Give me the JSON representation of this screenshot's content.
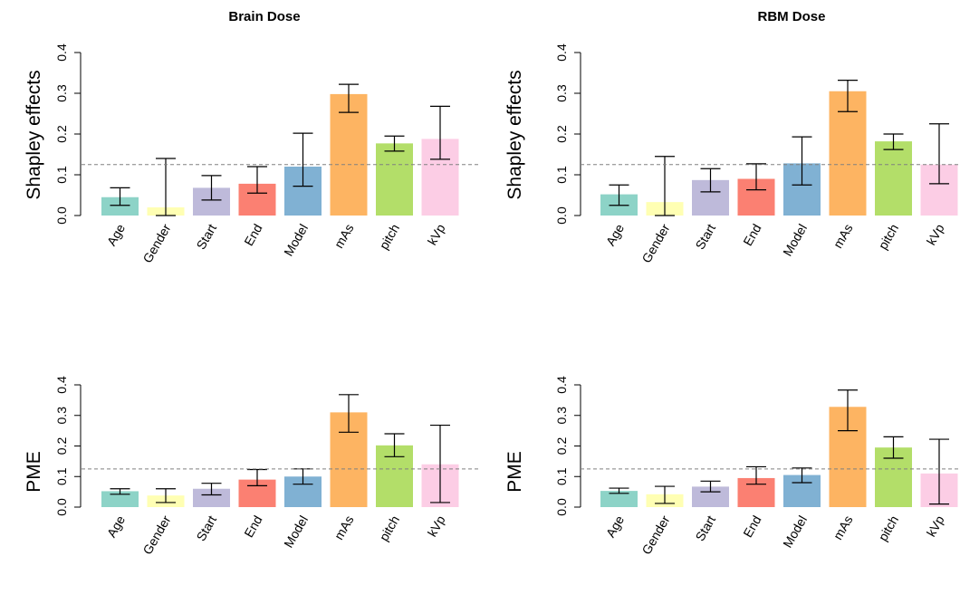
{
  "chart_data": [
    {
      "type": "bar",
      "title": "Brain Dose",
      "ylabel": "Shapley effects",
      "ylim": [
        0,
        0.4
      ],
      "yticks": [
        "0.0",
        "0.1",
        "0.2",
        "0.3",
        "0.4"
      ],
      "reference_line": 0.125,
      "categories": [
        "Age",
        "Gender",
        "Start",
        "End",
        "Model",
        "mAs",
        "pitch",
        "kVp"
      ],
      "values": [
        0.045,
        0.02,
        0.068,
        0.078,
        0.12,
        0.298,
        0.177,
        0.188
      ],
      "error_low": [
        0.025,
        0.0,
        0.038,
        0.055,
        0.072,
        0.253,
        0.158,
        0.138
      ],
      "error_high": [
        0.068,
        0.14,
        0.098,
        0.12,
        0.202,
        0.322,
        0.195,
        0.268
      ],
      "colors": [
        "#8dd3c7",
        "#ffffb3",
        "#bebada",
        "#fb8072",
        "#80b1d3",
        "#fdb462",
        "#b3de69",
        "#fccde5"
      ]
    },
    {
      "type": "bar",
      "title": "RBM Dose",
      "ylabel": "Shapley effects",
      "ylim": [
        0,
        0.4
      ],
      "yticks": [
        "0.0",
        "0.1",
        "0.2",
        "0.3",
        "0.4"
      ],
      "reference_line": 0.125,
      "categories": [
        "Age",
        "Gender",
        "Start",
        "End",
        "Model",
        "mAs",
        "pitch",
        "kVp"
      ],
      "values": [
        0.052,
        0.033,
        0.087,
        0.09,
        0.128,
        0.305,
        0.182,
        0.125
      ],
      "error_low": [
        0.025,
        0.0,
        0.058,
        0.063,
        0.075,
        0.255,
        0.162,
        0.078
      ],
      "error_high": [
        0.075,
        0.145,
        0.115,
        0.127,
        0.193,
        0.332,
        0.2,
        0.225
      ],
      "colors": [
        "#8dd3c7",
        "#ffffb3",
        "#bebada",
        "#fb8072",
        "#80b1d3",
        "#fdb462",
        "#b3de69",
        "#fccde5"
      ]
    },
    {
      "type": "bar",
      "title": "",
      "ylabel": "PME",
      "ylim": [
        0,
        0.4
      ],
      "yticks": [
        "0.0",
        "0.1",
        "0.2",
        "0.3",
        "0.4"
      ],
      "reference_line": 0.125,
      "categories": [
        "Age",
        "Gender",
        "Start",
        "End",
        "Model",
        "mAs",
        "pitch",
        "kVp"
      ],
      "values": [
        0.052,
        0.038,
        0.06,
        0.09,
        0.1,
        0.31,
        0.202,
        0.14
      ],
      "error_low": [
        0.042,
        0.015,
        0.04,
        0.07,
        0.075,
        0.245,
        0.165,
        0.015
      ],
      "error_high": [
        0.06,
        0.06,
        0.078,
        0.123,
        0.125,
        0.368,
        0.24,
        0.268
      ],
      "colors": [
        "#8dd3c7",
        "#ffffb3",
        "#bebada",
        "#fb8072",
        "#80b1d3",
        "#fdb462",
        "#b3de69",
        "#fccde5"
      ]
    },
    {
      "type": "bar",
      "title": "",
      "ylabel": "PME",
      "ylim": [
        0,
        0.4
      ],
      "yticks": [
        "0.0",
        "0.1",
        "0.2",
        "0.3",
        "0.4"
      ],
      "reference_line": 0.125,
      "categories": [
        "Age",
        "Gender",
        "Start",
        "End",
        "Model",
        "mAs",
        "pitch",
        "kVp"
      ],
      "values": [
        0.053,
        0.042,
        0.067,
        0.095,
        0.105,
        0.328,
        0.195,
        0.11
      ],
      "error_low": [
        0.045,
        0.012,
        0.05,
        0.075,
        0.08,
        0.25,
        0.16,
        0.01
      ],
      "error_high": [
        0.062,
        0.068,
        0.085,
        0.132,
        0.128,
        0.383,
        0.23,
        0.222
      ],
      "colors": [
        "#8dd3c7",
        "#ffffb3",
        "#bebada",
        "#fb8072",
        "#80b1d3",
        "#fdb462",
        "#b3de69",
        "#fccde5"
      ]
    }
  ]
}
